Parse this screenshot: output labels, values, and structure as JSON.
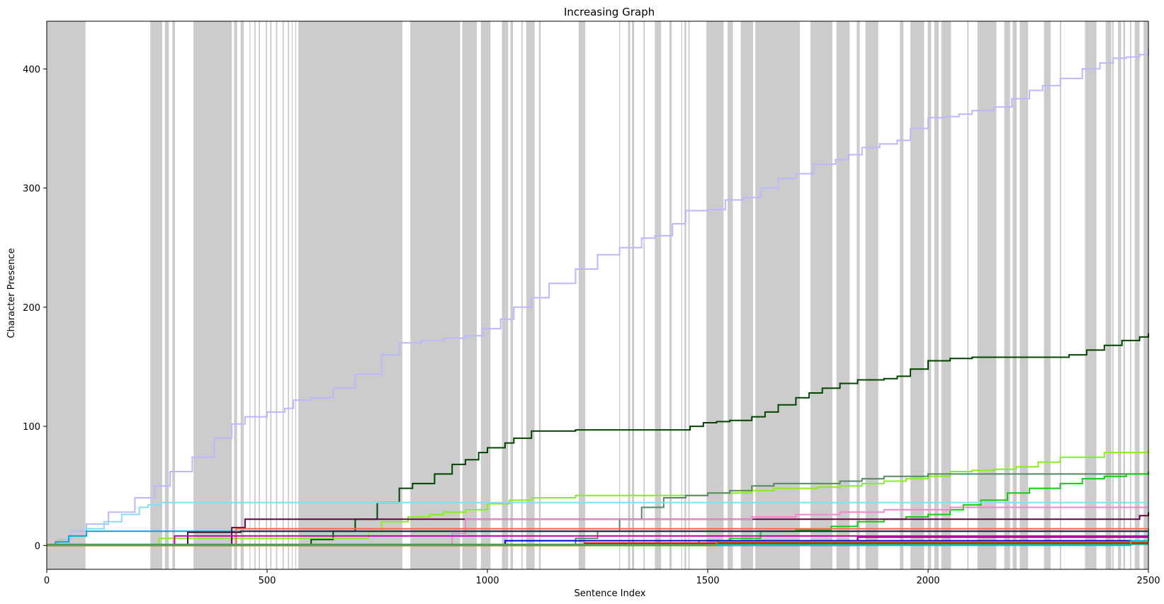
{
  "chart_data": {
    "type": "line",
    "title": "Increasing Graph",
    "xlabel": "Sentence Index",
    "ylabel": "Character Presence",
    "xlim": [
      0,
      2500
    ],
    "ylim": [
      -20,
      440
    ],
    "xticks": [
      0,
      500,
      1000,
      1500,
      2000,
      2500
    ],
    "yticks": [
      0,
      100,
      200,
      300,
      400
    ],
    "grid": false,
    "legend": "none",
    "shading_color": "#cccccc",
    "shaded_ranges": [
      [
        0,
        88
      ],
      [
        235,
        262
      ],
      [
        268,
        277
      ],
      [
        285,
        291
      ],
      [
        333,
        420
      ],
      [
        425,
        432
      ],
      [
        440,
        447
      ],
      [
        460,
        462
      ],
      [
        471,
        474
      ],
      [
        481,
        484
      ],
      [
        497,
        500
      ],
      [
        507,
        510
      ],
      [
        520,
        523
      ],
      [
        535,
        538
      ],
      [
        547,
        550
      ],
      [
        556,
        558
      ],
      [
        564,
        566
      ],
      [
        571,
        807
      ],
      [
        825,
        938
      ],
      [
        943,
        976
      ],
      [
        985,
        1007
      ],
      [
        1033,
        1047
      ],
      [
        1052,
        1058
      ],
      [
        1077,
        1080
      ],
      [
        1088,
        1107
      ],
      [
        1117,
        1121
      ],
      [
        1207,
        1222
      ],
      [
        1299,
        1301
      ],
      [
        1319,
        1324
      ],
      [
        1328,
        1333
      ],
      [
        1354,
        1357
      ],
      [
        1380,
        1394
      ],
      [
        1413,
        1418
      ],
      [
        1440,
        1442
      ],
      [
        1447,
        1451
      ],
      [
        1456,
        1459
      ],
      [
        1497,
        1536
      ],
      [
        1545,
        1557
      ],
      [
        1575,
        1603
      ],
      [
        1608,
        1709
      ],
      [
        1733,
        1783
      ],
      [
        1792,
        1822
      ],
      [
        1838,
        1845
      ],
      [
        1858,
        1887
      ],
      [
        1936,
        1944
      ],
      [
        1960,
        1991
      ],
      [
        1999,
        2007
      ],
      [
        2014,
        2024
      ],
      [
        2030,
        2052
      ],
      [
        2089,
        2092
      ],
      [
        2112,
        2155
      ],
      [
        2173,
        2186
      ],
      [
        2192,
        2201
      ],
      [
        2208,
        2227
      ],
      [
        2263,
        2278
      ],
      [
        2299,
        2302
      ],
      [
        2356,
        2382
      ],
      [
        2403,
        2416
      ],
      [
        2418,
        2421
      ],
      [
        2431,
        2438
      ],
      [
        2443,
        2447
      ],
      [
        2458,
        2461
      ],
      [
        2469,
        2480
      ],
      [
        2489,
        2500
      ]
    ],
    "series": [
      {
        "color": "#bbb8ff",
        "x": [
          0,
          25,
          55,
          90,
          140,
          200,
          245,
          280,
          330,
          380,
          420,
          450,
          500,
          540,
          560,
          600,
          650,
          700,
          760,
          800,
          850,
          900,
          950,
          990,
          1030,
          1060,
          1100,
          1140,
          1200,
          1250,
          1300,
          1350,
          1380,
          1420,
          1450,
          1500,
          1540,
          1580,
          1620,
          1660,
          1700,
          1740,
          1790,
          1820,
          1850,
          1890,
          1930,
          1960,
          2000,
          2040,
          2070,
          2100,
          2150,
          2190,
          2230,
          2260,
          2300,
          2350,
          2390,
          2420,
          2450,
          2480,
          2500
        ],
        "y": [
          0,
          5,
          12,
          18,
          28,
          40,
          50,
          62,
          74,
          90,
          102,
          108,
          112,
          115,
          122,
          124,
          132,
          144,
          160,
          170,
          172,
          174,
          176,
          182,
          190,
          200,
          208,
          220,
          232,
          244,
          250,
          258,
          260,
          270,
          281,
          282,
          290,
          292,
          300,
          308,
          312,
          320,
          324,
          328,
          334,
          337,
          340,
          350,
          359,
          360,
          362,
          365,
          368,
          375,
          382,
          386,
          392,
          400,
          405,
          409,
          410,
          412,
          418
        ]
      },
      {
        "color": "#004400",
        "x": [
          0,
          570,
          600,
          650,
          700,
          750,
          800,
          830,
          880,
          920,
          950,
          980,
          1000,
          1040,
          1060,
          1100,
          1200,
          1250,
          1300,
          1400,
          1450,
          1460,
          1490,
          1520,
          1550,
          1600,
          1630,
          1660,
          1700,
          1730,
          1760,
          1800,
          1840,
          1900,
          1930,
          1960,
          2000,
          2050,
          2100,
          2150,
          2200,
          2250,
          2300,
          2320,
          2360,
          2400,
          2440,
          2480,
          2500
        ],
        "y": [
          0,
          0,
          5,
          12,
          22,
          36,
          48,
          52,
          60,
          68,
          72,
          78,
          82,
          86,
          90,
          96,
          97,
          97,
          97,
          97,
          97,
          100,
          103,
          104,
          105,
          108,
          112,
          118,
          124,
          128,
          132,
          136,
          139,
          140,
          142,
          148,
          155,
          157,
          158,
          158,
          158,
          158,
          158,
          160,
          164,
          168,
          172,
          175,
          178
        ]
      },
      {
        "color": "#88ee22",
        "x": [
          0,
          240,
          255,
          700,
          730,
          760,
          820,
          870,
          900,
          950,
          1000,
          1050,
          1100,
          1200,
          1500,
          1600,
          1650,
          1700,
          1750,
          1800,
          1850,
          1900,
          1950,
          2000,
          2050,
          2100,
          2150,
          2200,
          2250,
          2300,
          2400,
          2500
        ],
        "y": [
          0,
          0,
          6,
          6,
          12,
          20,
          24,
          26,
          28,
          30,
          35,
          38,
          40,
          42,
          44,
          46,
          48,
          48,
          49,
          50,
          52,
          54,
          56,
          58,
          62,
          63,
          64,
          66,
          70,
          74,
          78,
          80
        ]
      },
      {
        "color": "#558866",
        "x": [
          0,
          1160,
          1200,
          1250,
          1300,
          1350,
          1400,
          1450,
          1500,
          1550,
          1600,
          1650,
          1700,
          1750,
          1800,
          1850,
          1900,
          2000,
          2100,
          2200,
          2300,
          2400,
          2500
        ],
        "y": [
          0,
          0,
          6,
          12,
          22,
          32,
          40,
          42,
          44,
          46,
          50,
          52,
          52,
          52,
          54,
          56,
          58,
          60,
          60,
          60,
          60,
          60,
          60
        ]
      },
      {
        "color": "#11cc11",
        "x": [
          0,
          1460,
          1480,
          1550,
          1620,
          1700,
          1780,
          1840,
          1900,
          1950,
          2000,
          2050,
          2080,
          2120,
          2180,
          2230,
          2300,
          2350,
          2400,
          2450,
          2500
        ],
        "y": [
          0,
          0,
          4,
          6,
          12,
          13,
          16,
          20,
          22,
          24,
          26,
          30,
          34,
          38,
          44,
          48,
          52,
          56,
          58,
          60,
          62
        ]
      },
      {
        "color": "#88ddee",
        "x": [
          0,
          20,
          50,
          90,
          130,
          170,
          210,
          230,
          260,
          2500
        ],
        "y": [
          0,
          3,
          8,
          14,
          20,
          26,
          32,
          34,
          36,
          36
        ]
      },
      {
        "color": "#00aacc",
        "x": [
          0,
          20,
          50,
          90,
          2500
        ],
        "y": [
          0,
          3,
          8,
          12,
          12
        ]
      },
      {
        "color": "#660044",
        "x": [
          0,
          395,
          420,
          450,
          2460,
          2480,
          2500
        ],
        "y": [
          0,
          0,
          15,
          22,
          22,
          25,
          28
        ]
      },
      {
        "color": "#ee88cc",
        "x": [
          0,
          900,
          920,
          950,
          1480,
          1600,
          1700,
          1800,
          1900,
          2000,
          2050,
          2200,
          2500
        ],
        "y": [
          0,
          0,
          10,
          22,
          22,
          24,
          26,
          28,
          30,
          30,
          32,
          32,
          32
        ]
      },
      {
        "color": "#ff6644",
        "x": [
          0,
          400,
          430,
          2500
        ],
        "y": [
          0,
          0,
          14,
          14
        ]
      },
      {
        "color": "#441133",
        "x": [
          0,
          280,
          320,
          440,
          2500
        ],
        "y": [
          0,
          0,
          11,
          12,
          12
        ]
      },
      {
        "color": "#cc00aa",
        "x": [
          0,
          250,
          290,
          2500
        ],
        "y": [
          0,
          0,
          8,
          8
        ]
      },
      {
        "color": "#0000dd",
        "x": [
          0,
          1000,
          1040,
          2500
        ],
        "y": [
          0,
          0,
          4,
          4
        ]
      },
      {
        "color": "#dd0000",
        "x": [
          0,
          1200,
          1220,
          2500
        ],
        "y": [
          0,
          0,
          2,
          2
        ]
      },
      {
        "color": "#880088",
        "x": [
          0,
          1800,
          1840,
          2500
        ],
        "y": [
          0,
          0,
          7,
          7
        ]
      },
      {
        "color": "#00cccc",
        "x": [
          0,
          2460,
          2500
        ],
        "y": [
          0,
          4,
          14
        ]
      },
      {
        "color": "#22aa88",
        "x": [
          0,
          2500
        ],
        "y": [
          1,
          1
        ]
      },
      {
        "color": "#aa8800",
        "x": [
          0,
          1500,
          1520,
          2500
        ],
        "y": [
          0,
          0,
          3,
          3
        ]
      }
    ]
  }
}
